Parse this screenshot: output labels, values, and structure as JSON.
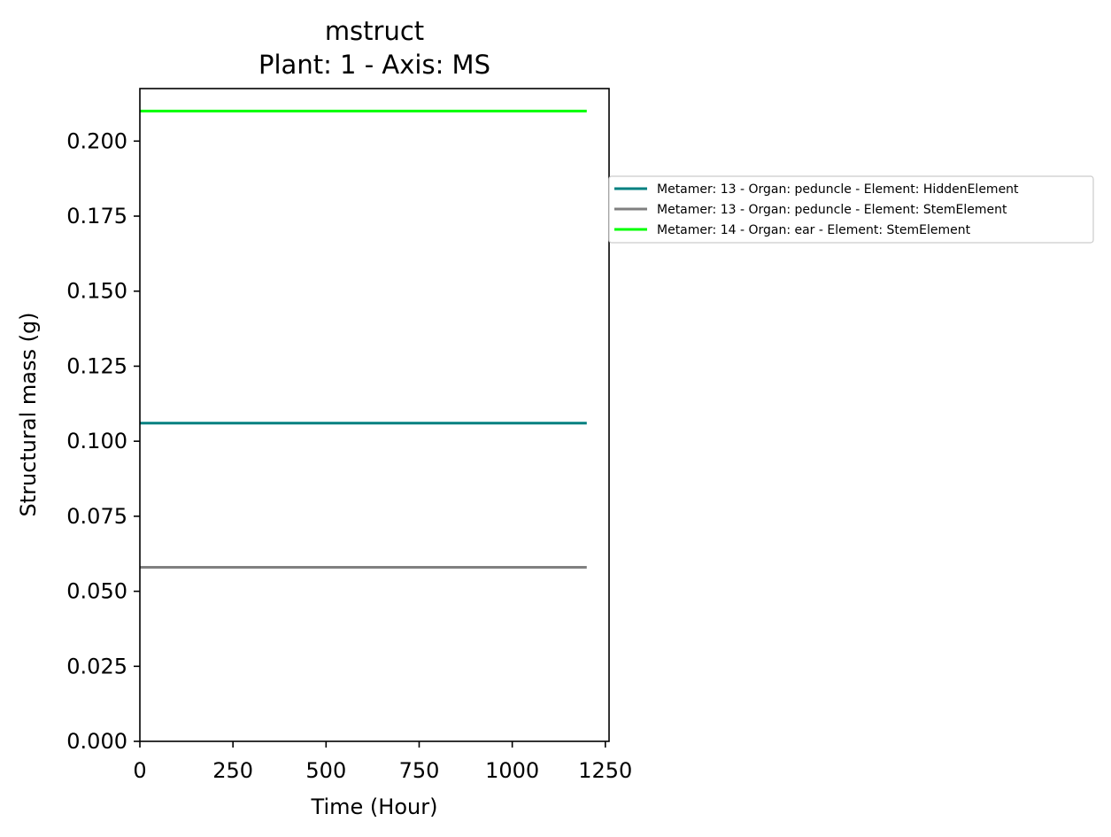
{
  "chart_data": {
    "type": "line",
    "title": "mstruct",
    "subtitle": "Plant: 1 - Axis: MS",
    "xlabel": "Time (Hour)",
    "ylabel": "Structural mass (g)",
    "xlim": [
      0,
      1260
    ],
    "ylim": [
      0,
      0.2175
    ],
    "xticks": [
      0,
      250,
      500,
      750,
      1000,
      1250
    ],
    "xtick_labels": [
      "0",
      "250",
      "500",
      "750",
      "1000",
      "1250"
    ],
    "yticks": [
      0,
      0.025,
      0.05,
      0.075,
      0.1,
      0.125,
      0.15,
      0.175,
      0.2
    ],
    "ytick_labels": [
      "0.000",
      "0.025",
      "0.050",
      "0.075",
      "0.100",
      "0.125",
      "0.150",
      "0.175",
      "0.200"
    ],
    "grid": false,
    "legend_position": "outside-right",
    "series": [
      {
        "name": "Metamer: 13 - Organ: peduncle - Element: HiddenElement",
        "color": "#008080",
        "x": [
          0,
          1200
        ],
        "y": [
          0.106,
          0.106
        ]
      },
      {
        "name": "Metamer: 13 - Organ: peduncle - Element: StemElement",
        "color": "#808080",
        "x": [
          0,
          1200
        ],
        "y": [
          0.058,
          0.058
        ]
      },
      {
        "name": "Metamer: 14 - Organ: ear - Element: StemElement",
        "color": "#00ff00",
        "x": [
          0,
          1200
        ],
        "y": [
          0.21,
          0.21
        ]
      }
    ]
  }
}
